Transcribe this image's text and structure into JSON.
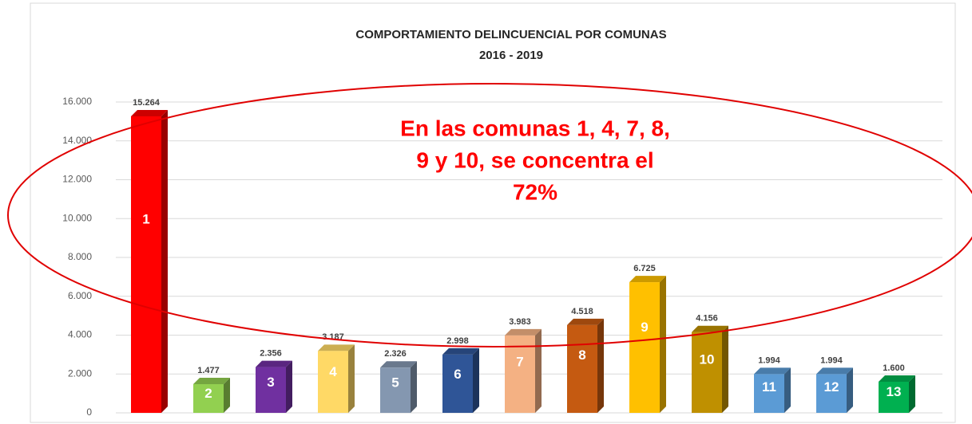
{
  "chart_data": {
    "type": "bar3d",
    "title": "COMPORTAMIENTO DELINCUENCIAL POR COMUNAS",
    "subtitle": "2016 - 2019",
    "annotation_lines": [
      "En las comunas 1, 4, 7, 8,",
      "9 y 10, se concentra el",
      "72%"
    ],
    "categories": [
      "1",
      "2",
      "3",
      "4",
      "5",
      "6",
      "7",
      "8",
      "9",
      "10",
      "11",
      "12",
      "13"
    ],
    "values": [
      15264,
      1477,
      2356,
      3187,
      2326,
      2998,
      3983,
      4518,
      6725,
      4156,
      1994,
      1994,
      1600
    ],
    "value_labels": [
      "15.264",
      "1.477",
      "2.356",
      "3.187",
      "2.326",
      "2.998",
      "3.983",
      "4.518",
      "6.725",
      "4.156",
      "1.994",
      "1.994",
      "1.600"
    ],
    "colors": [
      "#ff0000",
      "#92d050",
      "#7030a0",
      "#ffd966",
      "#8497b0",
      "#2f5597",
      "#f4b183",
      "#c55a11",
      "#ffc000",
      "#bf9000",
      "#5b9bd5",
      "#5b9bd5",
      "#00b050"
    ],
    "ylim": [
      0,
      16000
    ],
    "yticks": [
      0,
      {
        "value": 2000,
        "label": "2.000"
      },
      {
        "value": 4000,
        "label": "4.000"
      },
      {
        "value": 6000,
        "label": "6.000"
      },
      {
        "value": 8000,
        "label": "8.000"
      },
      {
        "value": 10000,
        "label": "10.000"
      },
      {
        "value": 12000,
        "label": "12.000"
      },
      {
        "value": 14000,
        "label": "14.000"
      },
      {
        "value": 16000,
        "label": "16.000"
      }
    ],
    "grid": true
  }
}
